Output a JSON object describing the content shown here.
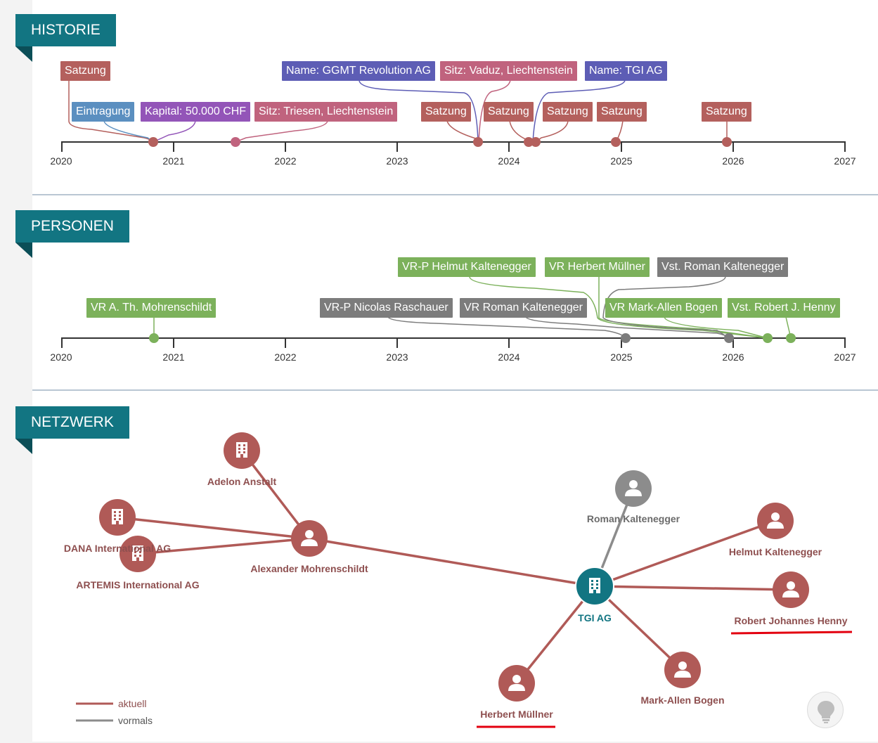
{
  "colors": {
    "header_bg": "#127582",
    "statute": "#b4605d",
    "register": "#5b8fc0",
    "capital": "#9355b8",
    "seat": "#c0637e",
    "name": "#5d5db5",
    "person_current": "#7cb15b",
    "person_former": "#7c7c7c",
    "network_current": "#b05a57",
    "network_former": "#8c8c8c",
    "network_center": "#127582",
    "highlight": "#e3000f"
  },
  "axis_years": [
    "2020",
    "2021",
    "2022",
    "2023",
    "2024",
    "2025",
    "2026",
    "2027"
  ],
  "historie": {
    "title": "HISTORIE",
    "tags": [
      {
        "text": "Satzung",
        "kind": "statute"
      },
      {
        "text": "Eintragung",
        "kind": "register"
      },
      {
        "text": "Kapital: 50.000 CHF",
        "kind": "capital"
      },
      {
        "text": "Sitz: Triesen, Liechtenstein",
        "kind": "seat"
      },
      {
        "text": "Name: GGMT Revolution AG",
        "kind": "name"
      },
      {
        "text": "Sitz: Vaduz, Liechtenstein",
        "kind": "seat"
      },
      {
        "text": "Name: TGI AG",
        "kind": "name"
      },
      {
        "text": "Satzung",
        "kind": "statute"
      },
      {
        "text": "Satzung",
        "kind": "statute"
      },
      {
        "text": "Satzung",
        "kind": "statute"
      },
      {
        "text": "Satzung",
        "kind": "statute"
      },
      {
        "text": "Satzung",
        "kind": "statute"
      }
    ]
  },
  "personen": {
    "title": "PERSONEN",
    "tags": [
      {
        "text": "VR A. Th. Mohrenschildt",
        "kind": "person_current"
      },
      {
        "text": "VR-P Nicolas Raschauer",
        "kind": "person_former"
      },
      {
        "text": "VR Roman Kaltenegger",
        "kind": "person_former"
      },
      {
        "text": "VR-P Helmut Kaltenegger",
        "kind": "person_current"
      },
      {
        "text": "VR Herbert Müllner",
        "kind": "person_current"
      },
      {
        "text": "Vst. Roman Kaltenegger",
        "kind": "person_former"
      },
      {
        "text": "VR Mark-Allen Bogen",
        "kind": "person_current"
      },
      {
        "text": "Vst. Robert J. Henny",
        "kind": "person_current"
      }
    ]
  },
  "netzwerk": {
    "title": "NETZWERK",
    "nodes": [
      {
        "id": "adelon",
        "label": "Adelon Anstalt",
        "type": "company",
        "status": "current"
      },
      {
        "id": "dana",
        "label": "DANA International AG",
        "type": "company",
        "status": "current"
      },
      {
        "id": "artemis",
        "label": "ARTEMIS International AG",
        "type": "company",
        "status": "current"
      },
      {
        "id": "alexander",
        "label": "Alexander Mohrenschildt",
        "type": "person",
        "status": "current"
      },
      {
        "id": "roman",
        "label": "Roman Kaltenegger",
        "type": "person",
        "status": "former"
      },
      {
        "id": "helmut",
        "label": "Helmut Kaltenegger",
        "type": "person",
        "status": "current"
      },
      {
        "id": "tgi",
        "label": "TGI AG",
        "type": "company",
        "status": "center"
      },
      {
        "id": "robert",
        "label": "Robert Johannes Henny",
        "type": "person",
        "status": "current",
        "highlighted": true
      },
      {
        "id": "mark",
        "label": "Mark-Allen Bogen",
        "type": "person",
        "status": "current"
      },
      {
        "id": "herbert",
        "label": "Herbert Müllner",
        "type": "person",
        "status": "current",
        "highlighted": true
      }
    ],
    "edges": [
      {
        "from": "adelon",
        "to": "alexander",
        "status": "current"
      },
      {
        "from": "dana",
        "to": "alexander",
        "status": "current"
      },
      {
        "from": "artemis",
        "to": "alexander",
        "status": "current"
      },
      {
        "from": "alexander",
        "to": "tgi",
        "status": "current"
      },
      {
        "from": "roman",
        "to": "tgi",
        "status": "former"
      },
      {
        "from": "helmut",
        "to": "tgi",
        "status": "current"
      },
      {
        "from": "robert",
        "to": "tgi",
        "status": "current"
      },
      {
        "from": "mark",
        "to": "tgi",
        "status": "current"
      },
      {
        "from": "herbert",
        "to": "tgi",
        "status": "current"
      }
    ],
    "legend": {
      "current": "aktuell",
      "former": "vormals"
    },
    "hint_icon": "lightbulb-icon"
  }
}
